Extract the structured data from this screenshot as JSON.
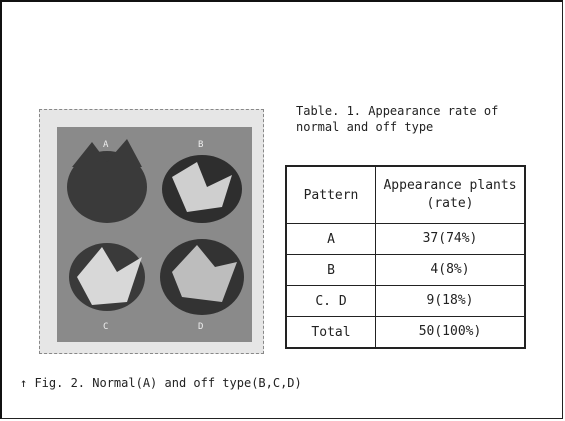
{
  "table": {
    "caption": "Table. 1. Appearance rate of normal and off type",
    "header": [
      "Pattern",
      "Appearance plants(rate)"
    ],
    "rows": [
      [
        "A",
        "37(74%)"
      ],
      [
        "B",
        "4(8%)"
      ],
      [
        "C. D",
        "9(18%)"
      ],
      [
        "Total",
        "50(100%)"
      ]
    ]
  },
  "figure": {
    "caption": "↑ Fig. 2. Normal(A) and off type(B,C,D)",
    "labels": [
      "A",
      "B",
      "C",
      "D"
    ]
  }
}
